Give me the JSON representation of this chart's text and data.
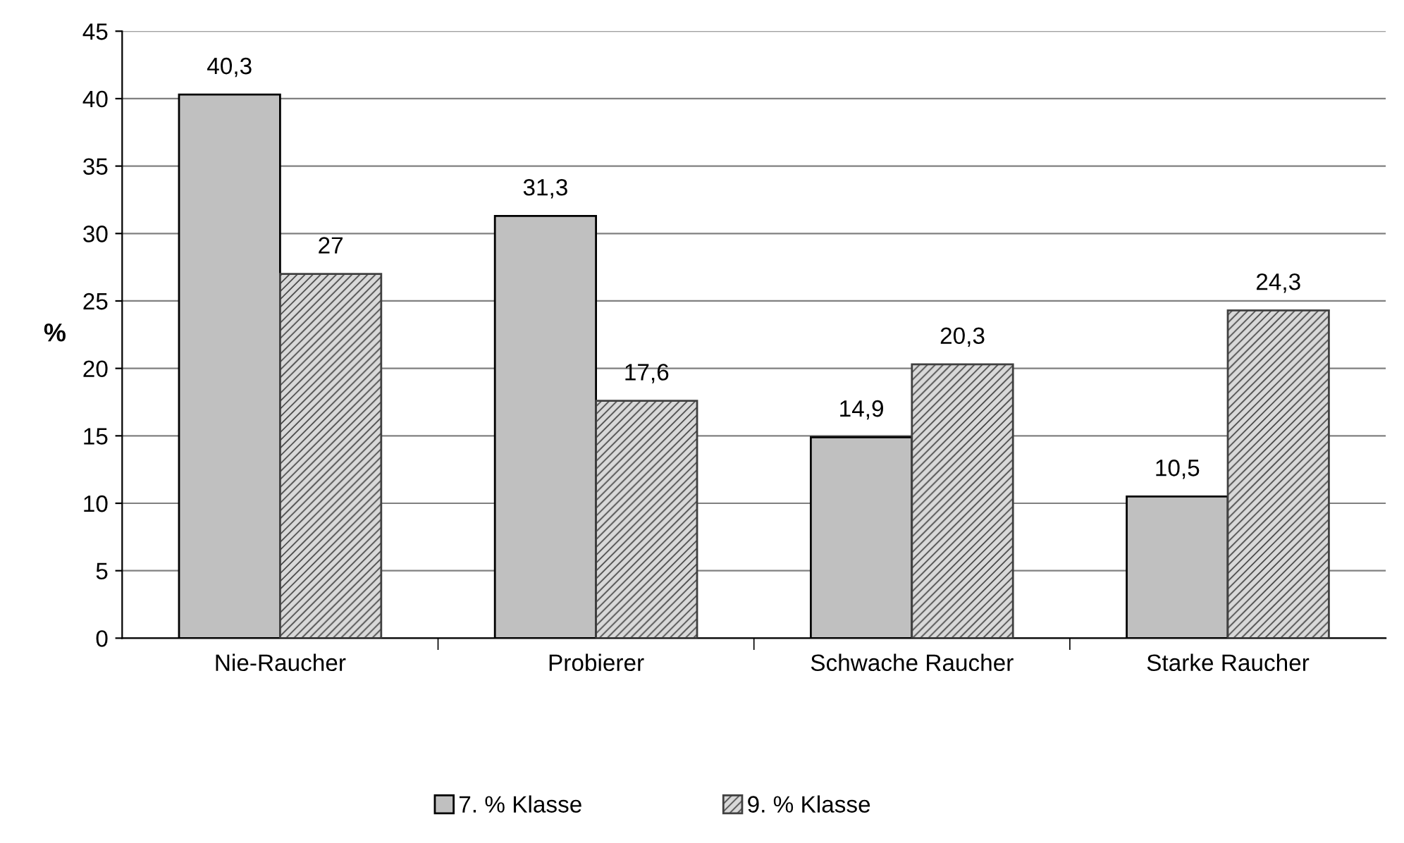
{
  "chart_data": {
    "type": "bar",
    "ylabel": "%",
    "categories": [
      "Nie-Raucher",
      "Probierer",
      "Schwache Raucher",
      "Starke Raucher"
    ],
    "series": [
      {
        "name": "7. % Klasse",
        "color": "#c0c0c0",
        "values": [
          40.3,
          31.3,
          14.9,
          10.5
        ],
        "value_labels": [
          "40,3",
          "31,3",
          "14,9",
          "10,5"
        ]
      },
      {
        "name": "9. % Klasse",
        "color": "#404040",
        "values": [
          27,
          17.6,
          20.3,
          24.3
        ],
        "value_labels": [
          "27",
          "17,6",
          "20,3",
          "24,3"
        ]
      }
    ],
    "ylim": [
      0,
      45
    ],
    "yticks": [
      0,
      5,
      10,
      15,
      20,
      25,
      30,
      35,
      40,
      45
    ],
    "grid": "y",
    "legend": "bottom"
  }
}
